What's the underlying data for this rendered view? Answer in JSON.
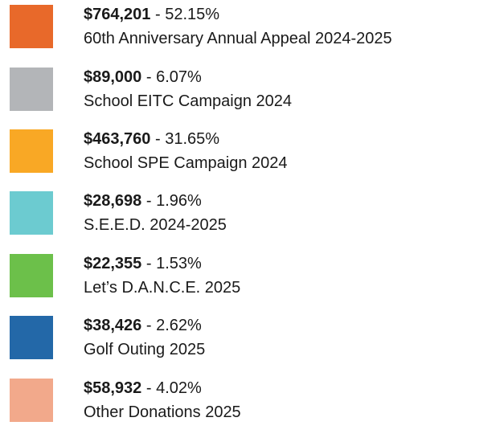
{
  "items": [
    {
      "color": "#e8692a",
      "amount": "$764,201",
      "share": "- 52.15%",
      "label": "60th Anniversary Annual Appeal 2024-2025"
    },
    {
      "color": "#b3b5b8",
      "amount": "$89,000",
      "share": "- 6.07%",
      "label": "School EITC Campaign 2024"
    },
    {
      "color": "#f9a825",
      "amount": "$463,760",
      "share": "- 31.65%",
      "label": "School SPE Campaign 2024"
    },
    {
      "color": "#6ccbd0",
      "amount": "$28,698",
      "share": "- 1.96%",
      "label": "S.E.E.D. 2024-2025"
    },
    {
      "color": "#6cc04a",
      "amount": "$22,355",
      "share": "- 1.53%",
      "label": "Let’s D.A.N.C.E. 2025"
    },
    {
      "color": "#2368a8",
      "amount": "$38,426",
      "share": "- 2.62%",
      "label": "Golf Outing 2025"
    },
    {
      "color": "#f2a98b",
      "amount": "$58,932",
      "share": "- 4.02%",
      "label": "Other Donations 2025"
    }
  ]
}
